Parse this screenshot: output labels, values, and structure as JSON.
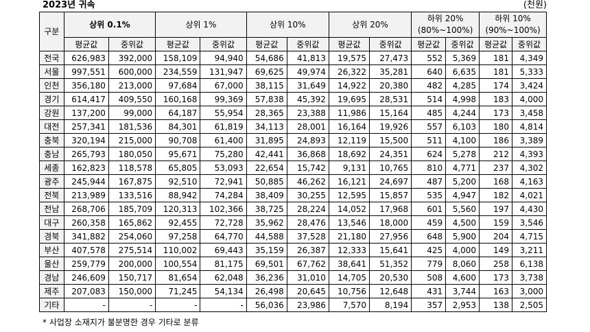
{
  "title": "2023년 귀속",
  "unit": "(천원)",
  "footnote": "* 사업장 소재지가 불분명한 경우 기타로 분류",
  "header": {
    "region": "구분",
    "groups": [
      "상위 0.1%",
      "상위 1%",
      "상위 10%",
      "상위 20%",
      "하위 20%",
      "하위 10%"
    ],
    "group_sub": [
      "",
      "",
      "",
      "",
      "(80%~100%)",
      "(90%~100%)"
    ],
    "mean": "평균값",
    "median": "중위값"
  },
  "rows": [
    {
      "region": "전국",
      "values": [
        "626,983",
        "392,000",
        "158,109",
        "94,940",
        "54,686",
        "41,813",
        "19,575",
        "27,473",
        "552",
        "5,369",
        "181",
        "4,349"
      ]
    },
    {
      "region": "서울",
      "values": [
        "997,551",
        "600,000",
        "234,559",
        "131,947",
        "69,625",
        "49,974",
        "26,322",
        "35,281",
        "640",
        "6,635",
        "181",
        "5,333"
      ]
    },
    {
      "region": "인천",
      "values": [
        "356,180",
        "213,000",
        "97,684",
        "67,000",
        "38,115",
        "31,649",
        "14,922",
        "20,380",
        "482",
        "4,285",
        "174",
        "3,424"
      ]
    },
    {
      "region": "경기",
      "values": [
        "614,417",
        "409,550",
        "160,168",
        "99,369",
        "57,838",
        "45,392",
        "19,695",
        "28,531",
        "514",
        "4,998",
        "183",
        "4,000"
      ]
    },
    {
      "region": "강원",
      "values": [
        "137,200",
        "99,000",
        "64,187",
        "55,954",
        "28,365",
        "23,388",
        "11,986",
        "15,164",
        "485",
        "4,244",
        "173",
        "3,458"
      ]
    },
    {
      "region": "대전",
      "values": [
        "257,341",
        "181,536",
        "84,301",
        "61,819",
        "34,113",
        "28,001",
        "16,164",
        "19,926",
        "557",
        "6,103",
        "180",
        "4,814"
      ]
    },
    {
      "region": "충북",
      "values": [
        "320,194",
        "215,000",
        "90,708",
        "61,400",
        "31,895",
        "24,893",
        "12,119",
        "15,500",
        "511",
        "4,100",
        "186",
        "3,389"
      ]
    },
    {
      "region": "충남",
      "values": [
        "265,793",
        "180,050",
        "95,671",
        "75,280",
        "42,441",
        "36,868",
        "18,692",
        "24,351",
        "624",
        "5,278",
        "212",
        "4,393"
      ]
    },
    {
      "region": "세종",
      "values": [
        "162,823",
        "118,578",
        "65,805",
        "53,093",
        "22,654",
        "15,742",
        "9,131",
        "10,765",
        "810",
        "4,771",
        "237",
        "4,302"
      ]
    },
    {
      "region": "광주",
      "values": [
        "245,944",
        "167,875",
        "92,510",
        "72,941",
        "50,885",
        "46,262",
        "16,121",
        "24,697",
        "487",
        "5,200",
        "168",
        "4,163"
      ]
    },
    {
      "region": "전북",
      "values": [
        "213,989",
        "133,516",
        "88,942",
        "74,284",
        "38,409",
        "30,255",
        "12,595",
        "15,857",
        "535",
        "4,947",
        "182",
        "4,021"
      ]
    },
    {
      "region": "전남",
      "values": [
        "268,706",
        "185,709",
        "120,313",
        "102,366",
        "38,725",
        "28,224",
        "14,052",
        "17,968",
        "601",
        "5,560",
        "197",
        "4,430"
      ]
    },
    {
      "region": "대구",
      "values": [
        "260,358",
        "165,862",
        "92,455",
        "72,728",
        "35,962",
        "28,476",
        "13,546",
        "18,000",
        "459",
        "4,500",
        "159",
        "3,546"
      ]
    },
    {
      "region": "경북",
      "values": [
        "341,882",
        "254,060",
        "97,258",
        "64,770",
        "44,588",
        "37,528",
        "21,180",
        "27,956",
        "648",
        "5,900",
        "204",
        "4,715"
      ]
    },
    {
      "region": "부산",
      "values": [
        "407,578",
        "275,514",
        "110,002",
        "69,443",
        "35,159",
        "26,387",
        "12,333",
        "15,641",
        "425",
        "4,000",
        "149",
        "3,211"
      ]
    },
    {
      "region": "울산",
      "values": [
        "259,779",
        "200,000",
        "100,554",
        "81,175",
        "69,501",
        "67,762",
        "38,641",
        "51,352",
        "779",
        "8,060",
        "258",
        "6,138"
      ]
    },
    {
      "region": "경남",
      "values": [
        "246,609",
        "150,717",
        "81,654",
        "62,048",
        "36,236",
        "31,010",
        "14,705",
        "20,530",
        "508",
        "4,600",
        "173",
        "3,738"
      ]
    },
    {
      "region": "제주",
      "values": [
        "207,083",
        "150,000",
        "71,245",
        "54,134",
        "26,498",
        "20,645",
        "10,756",
        "12,648",
        "431",
        "3,744",
        "163",
        "3,000"
      ]
    },
    {
      "region": "기타",
      "values": [
        "-",
        "-",
        "-",
        "-",
        "56,036",
        "23,986",
        "7,570",
        "8,194",
        "357",
        "2,953",
        "138",
        "2,505"
      ]
    }
  ]
}
